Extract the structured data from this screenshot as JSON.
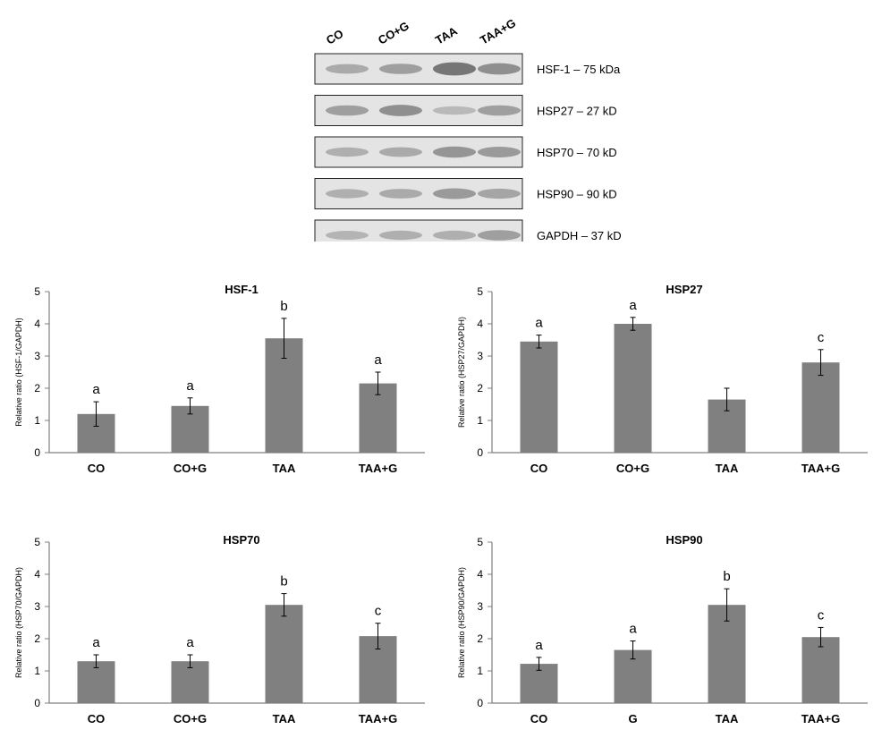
{
  "blot": {
    "lanes": [
      "CO",
      "CO+G",
      "TAA",
      "TAA+G"
    ],
    "bands": [
      {
        "label": "HSF-1 – 75 kDa",
        "intensity": [
          0.35,
          0.45,
          0.85,
          0.6
        ]
      },
      {
        "label": "HSP27 – 27 kD",
        "intensity": [
          0.45,
          0.6,
          0.2,
          0.45
        ]
      },
      {
        "label": "HSP70 – 70 kD",
        "intensity": [
          0.3,
          0.35,
          0.55,
          0.5
        ]
      },
      {
        "label": "HSP90 – 90 kD",
        "intensity": [
          0.3,
          0.35,
          0.5,
          0.4
        ]
      },
      {
        "label": "GAPDH – 37 kD",
        "intensity": [
          0.25,
          0.3,
          0.3,
          0.45
        ]
      }
    ]
  },
  "colors": {
    "bar": "#808080",
    "axis": "#7f7f7f",
    "blot_bg": "#e4e4e4",
    "band": "#505050"
  },
  "chart_data": [
    {
      "type": "bar",
      "title": "HSF-1",
      "ylabel": "Relative ratio (HSF-1/GAPDH)",
      "xlabel": "",
      "categories": [
        "CO",
        "CO+G",
        "TAA",
        "TAA+G"
      ],
      "values": [
        1.2,
        1.45,
        3.55,
        2.15
      ],
      "errors": [
        0.38,
        0.25,
        0.62,
        0.35
      ],
      "significance": [
        "a",
        "a",
        "b",
        "a"
      ],
      "ylim": [
        0,
        5
      ],
      "yticks": [
        "0",
        "1",
        "2",
        "3",
        "4",
        "5"
      ],
      "grid": false
    },
    {
      "type": "bar",
      "title": "HSP27",
      "ylabel": "Relative ratio (HSP27/GAPDH)",
      "xlabel": "",
      "categories": [
        "CO",
        "CO+G",
        "TAA",
        "TAA+G"
      ],
      "values": [
        3.45,
        4.0,
        1.65,
        2.8
      ],
      "errors": [
        0.2,
        0.2,
        0.35,
        0.4
      ],
      "significance": [
        "a",
        "a",
        "",
        "c"
      ],
      "ylim": [
        0,
        5
      ],
      "yticks": [
        "0",
        "1",
        "2",
        "3",
        "4",
        "5"
      ],
      "grid": false
    },
    {
      "type": "bar",
      "title": "HSP70",
      "ylabel": "Relative ratio (HSP70/GAPDH)",
      "xlabel": "",
      "categories": [
        "CO",
        "CO+G",
        "TAA",
        "TAA+G"
      ],
      "values": [
        1.3,
        1.3,
        3.05,
        2.08
      ],
      "errors": [
        0.2,
        0.2,
        0.35,
        0.4
      ],
      "significance": [
        "a",
        "a",
        "b",
        "c"
      ],
      "ylim": [
        0,
        5
      ],
      "yticks": [
        "0",
        "1",
        "2",
        "3",
        "4",
        "5"
      ],
      "grid": false
    },
    {
      "type": "bar",
      "title": "HSP90",
      "ylabel": "Relative ratio (HSP90/GAPDH)",
      "xlabel": "",
      "categories": [
        "CO",
        "G",
        "TAA",
        "TAA+G"
      ],
      "values": [
        1.22,
        1.65,
        3.05,
        2.05
      ],
      "errors": [
        0.2,
        0.28,
        0.5,
        0.3
      ],
      "significance": [
        "a",
        "a",
        "b",
        "c"
      ],
      "ylim": [
        0,
        5
      ],
      "yticks": [
        "0",
        "1",
        "2",
        "3",
        "4",
        "5"
      ],
      "grid": false
    }
  ]
}
